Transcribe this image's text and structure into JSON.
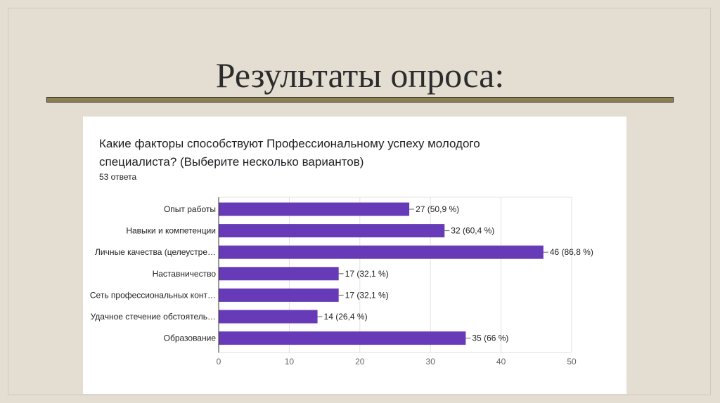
{
  "slide": {
    "title": "Результаты опроса:"
  },
  "question": {
    "text": "Какие факторы способствуют Профессиональному успеху молодого специалиста? (Выберите несколько вариантов)",
    "responses": "53 ответа"
  },
  "chart_data": {
    "type": "bar",
    "orientation": "horizontal",
    "categories": [
      "Опыт работы",
      "Навыки и компетенции",
      "Личные качества (целеустре…",
      "Наставничество",
      "Сеть профессиональных конт…",
      "Удачное стечение обстоятель…",
      "Образование"
    ],
    "values": [
      27,
      32,
      46,
      17,
      17,
      14,
      35
    ],
    "labels": [
      "27 (50,9 %)",
      "32 (60,4 %)",
      "46 (86,8 %)",
      "17 (32,1 %)",
      "17 (32,1 %)",
      "14 (26,4 %)",
      "35 (66 %)"
    ],
    "xlim": [
      0,
      50
    ],
    "xticks": [
      0,
      10,
      20,
      30,
      40,
      50
    ],
    "grid": true,
    "bar_color": "#673ab7"
  }
}
